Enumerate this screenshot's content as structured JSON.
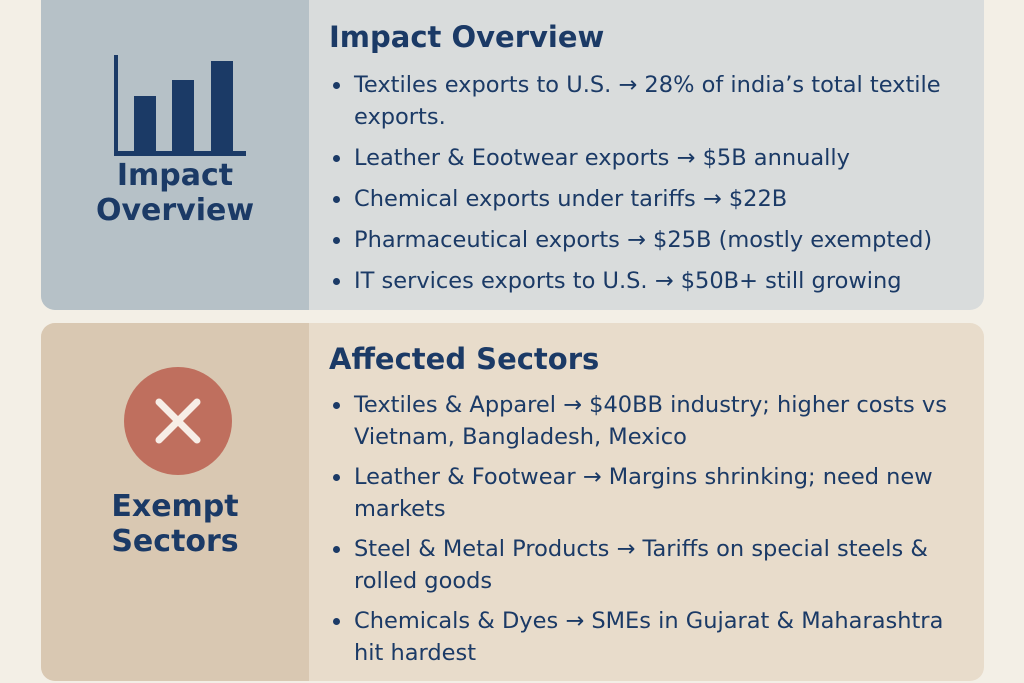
{
  "impact_card": {
    "side_label_line1": "Impact",
    "side_label_line2": "Overview",
    "side_icon": "bar-chart-icon",
    "heading": "Impact Overview",
    "items": [
      "Textiles exports to U.S. → 28% of india’s total textile exports.",
      "Leather & Eootwear exports → $5B annually",
      "Chemical exports under tariffs → $22B",
      "Pharmaceutical exports → $25B (mostly exempted)",
      "IT services exports to U.S. → $50B+  still growing"
    ]
  },
  "affected_card": {
    "side_label_line1": "Exempt",
    "side_label_line2": "Sectors",
    "side_icon": "x-circle-icon",
    "heading": "Affected Sectors",
    "items": [
      "Textiles & Apparel → $40BB industry; higher costs vs Vietnam, Bangladesh, Mexico",
      "Leather & Footwear → Margins shrinking; need new markets",
      "Steel & Metal Products → Tariffs on special steels & rolled goods",
      "Chemicals & Dyes → SMEs in Gujarat & Maharashtra hit hardest"
    ]
  },
  "colors": {
    "navy": "#1b3a66",
    "page_background": "#f3efe6",
    "impact_panel": "#d9dcdc",
    "impact_sidebar": "#b6c1c7",
    "affected_panel": "#e8dccb",
    "affected_sidebar": "#d9c8b2",
    "x_circle": "#bf6f5e"
  }
}
